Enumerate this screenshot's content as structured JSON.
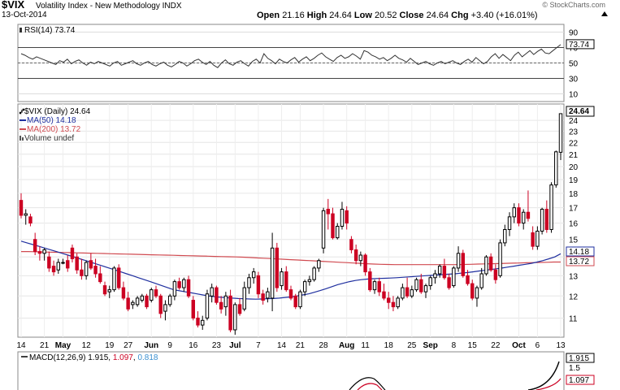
{
  "header": {
    "symbol": "$VIX",
    "name": "Volatility Index - New Methodology  INDX",
    "date": "13-Oct-2014",
    "watermark": "© StockCharts.com",
    "open_label": "Open",
    "open": "21.16",
    "high_label": "High",
    "high": "24.64",
    "low_label": "Low",
    "low": "20.52",
    "close_label": "Close",
    "close": "24.64",
    "chg_label": "Chg",
    "chg": "+3.40 (+16.01%)"
  },
  "rsi": {
    "label": "RSI(14) 73.74",
    "value_tag": "73.74",
    "ticks": [
      "90",
      "70",
      "50",
      "30",
      "10"
    ],
    "values": [
      62,
      60,
      57,
      55,
      58,
      56,
      54,
      52,
      50,
      48,
      53,
      51,
      55,
      49,
      52,
      54,
      50,
      47,
      51,
      49,
      52,
      50,
      48,
      46,
      50,
      52,
      47,
      49,
      51,
      53,
      49,
      47,
      50,
      52,
      48,
      46,
      49,
      51,
      47,
      45,
      48,
      52,
      50,
      46,
      49,
      53,
      55,
      51,
      48,
      52,
      47,
      44,
      50,
      54,
      49,
      47,
      51,
      53,
      49,
      46,
      52,
      55,
      50,
      62,
      56,
      53,
      49,
      55,
      52,
      50,
      54,
      57,
      51,
      55,
      58,
      53,
      56,
      60,
      63,
      58,
      55,
      52,
      57,
      60,
      56,
      58,
      62,
      59,
      55,
      66,
      64,
      60,
      58,
      55,
      57,
      53,
      56,
      60,
      56,
      54,
      51,
      56,
      52,
      48,
      50,
      52,
      49,
      47,
      50,
      52,
      49,
      51,
      53,
      50,
      48,
      52,
      55,
      51,
      57,
      53,
      49,
      52,
      58,
      62,
      56,
      61,
      57,
      53,
      60,
      64,
      58,
      62,
      66,
      61,
      65,
      68,
      63,
      62,
      66,
      70,
      73.74
    ]
  },
  "price": {
    "label": "$VIX (Daily) 24.64",
    "ma50_label": "MA(50) 14.18",
    "ma200_label": "MA(200) 13.72",
    "volume_label": "Volume undef",
    "tag_close": "24.64",
    "tag_ma50": "14.18",
    "tag_ma200": "13.72",
    "colors": {
      "up": "#000000",
      "down": "#cc0022",
      "ma50": "#1f2f9f",
      "ma200": "#d04a50"
    }
  },
  "macd": {
    "label_prefix": "MACD(12,26,9)",
    "macd": "1.915",
    "signal": "1.097",
    "hist": "0.818",
    "tag_macd": "1.915",
    "tag_signal": "1.097",
    "tick": "1.5",
    "colors": {
      "signal": "#cc0022",
      "hist": "#3a8fd0"
    }
  },
  "x_axis": {
    "labels": [
      {
        "t": "14",
        "b": false
      },
      {
        "t": "21",
        "b": false
      },
      {
        "t": "May",
        "b": true
      },
      {
        "t": "12",
        "b": false
      },
      {
        "t": "19",
        "b": false
      },
      {
        "t": "27",
        "b": false
      },
      {
        "t": "Jun",
        "b": true
      },
      {
        "t": "9",
        "b": false
      },
      {
        "t": "16",
        "b": false
      },
      {
        "t": "23",
        "b": false
      },
      {
        "t": "Jul",
        "b": true
      },
      {
        "t": "7",
        "b": false
      },
      {
        "t": "14",
        "b": false
      },
      {
        "t": "21",
        "b": false
      },
      {
        "t": "28",
        "b": false
      },
      {
        "t": "Aug",
        "b": true
      },
      {
        "t": "11",
        "b": false
      },
      {
        "t": "18",
        "b": false
      },
      {
        "t": "25",
        "b": false
      },
      {
        "t": "Sep",
        "b": true
      },
      {
        "t": "8",
        "b": false
      },
      {
        "t": "15",
        "b": false
      },
      {
        "t": "22",
        "b": false
      },
      {
        "t": "Oct",
        "b": true
      },
      {
        "t": "6",
        "b": false
      },
      {
        "t": "13",
        "b": false
      }
    ]
  },
  "chart_data": {
    "type": "candlestick",
    "title": "$VIX (Daily) 24.64",
    "ylabel": "",
    "y_ticks": [
      11,
      12,
      13,
      14,
      15,
      16,
      17,
      18,
      19,
      20,
      21,
      22,
      23,
      24
    ],
    "ylim": [
      10.2,
      25.6
    ],
    "scale": "log",
    "ohlc": [
      [
        17.5,
        18.0,
        16.3,
        16.5
      ],
      [
        16.5,
        16.9,
        15.9,
        16.6
      ],
      [
        16.4,
        16.6,
        15.8,
        16.0
      ],
      [
        15.0,
        15.4,
        14.1,
        14.3
      ],
      [
        14.3,
        14.6,
        13.8,
        14.2
      ],
      [
        14.2,
        14.5,
        13.8,
        14.4
      ],
      [
        14.0,
        14.3,
        13.2,
        13.4
      ],
      [
        13.5,
        13.8,
        13.0,
        13.2
      ],
      [
        13.3,
        13.9,
        13.1,
        13.7
      ],
      [
        13.7,
        13.9,
        13.6,
        13.7
      ],
      [
        13.8,
        14.1,
        13.2,
        13.4
      ],
      [
        14.5,
        14.7,
        13.7,
        13.9
      ],
      [
        14.0,
        14.2,
        13.1,
        13.3
      ],
      [
        13.3,
        13.9,
        12.8,
        13.0
      ],
      [
        13.0,
        13.8,
        12.8,
        13.7
      ],
      [
        13.8,
        14.2,
        13.3,
        13.4
      ],
      [
        13.5,
        13.9,
        12.9,
        13.1
      ],
      [
        13.1,
        13.5,
        12.6,
        12.7
      ],
      [
        12.5,
        12.7,
        12.0,
        12.1
      ],
      [
        12.2,
        12.5,
        11.9,
        12.3
      ],
      [
        12.3,
        13.5,
        12.2,
        13.4
      ],
      [
        13.4,
        13.6,
        12.3,
        12.4
      ],
      [
        12.4,
        12.7,
        11.8,
        11.9
      ],
      [
        11.9,
        12.2,
        11.3,
        11.4
      ],
      [
        11.6,
        11.8,
        11.4,
        11.7
      ],
      [
        11.6,
        12.0,
        11.5,
        11.9
      ],
      [
        11.8,
        12.1,
        11.7,
        12.0
      ],
      [
        12.0,
        12.1,
        11.4,
        11.5
      ],
      [
        11.8,
        12.4,
        11.7,
        12.3
      ],
      [
        12.3,
        12.5,
        11.9,
        12.0
      ],
      [
        12.0,
        12.1,
        11.0,
        11.2
      ],
      [
        11.3,
        11.8,
        10.9,
        11.6
      ],
      [
        11.6,
        12.1,
        11.5,
        12.0
      ],
      [
        12.0,
        12.8,
        11.8,
        12.7
      ],
      [
        12.7,
        12.9,
        12.3,
        12.4
      ],
      [
        12.4,
        12.9,
        12.2,
        12.8
      ],
      [
        12.8,
        13.0,
        11.9,
        12.0
      ],
      [
        11.8,
        12.0,
        10.9,
        11.0
      ],
      [
        11.0,
        11.3,
        10.6,
        10.7
      ],
      [
        10.7,
        11.1,
        10.5,
        10.9
      ],
      [
        11.0,
        12.3,
        10.9,
        12.1
      ],
      [
        12.0,
        12.6,
        11.7,
        12.4
      ],
      [
        12.4,
        12.5,
        11.6,
        11.7
      ],
      [
        11.7,
        12.0,
        11.2,
        11.4
      ],
      [
        11.5,
        12.2,
        11.1,
        12.0
      ],
      [
        12.0,
        12.3,
        10.4,
        10.5
      ],
      [
        10.5,
        11.7,
        10.3,
        11.6
      ],
      [
        11.6,
        11.9,
        11.1,
        11.2
      ],
      [
        11.4,
        12.7,
        11.3,
        12.4
      ],
      [
        12.4,
        13.1,
        12.1,
        12.9
      ],
      [
        12.9,
        13.4,
        12.6,
        13.2
      ],
      [
        13.0,
        13.2,
        11.9,
        12.1
      ],
      [
        12.1,
        12.3,
        11.6,
        11.8
      ],
      [
        11.9,
        12.4,
        11.7,
        12.2
      ],
      [
        11.9,
        15.4,
        11.3,
        14.5
      ],
      [
        14.5,
        14.8,
        12.2,
        12.4
      ],
      [
        12.5,
        13.4,
        12.3,
        13.2
      ],
      [
        13.2,
        13.5,
        12.2,
        12.3
      ],
      [
        12.3,
        12.5,
        11.8,
        11.9
      ],
      [
        12.0,
        12.1,
        11.4,
        11.5
      ],
      [
        11.5,
        12.3,
        11.4,
        12.2
      ],
      [
        12.2,
        12.8,
        12.0,
        12.7
      ],
      [
        12.7,
        13.0,
        12.5,
        12.8
      ],
      [
        12.8,
        13.5,
        12.7,
        13.4
      ],
      [
        13.4,
        13.9,
        13.2,
        13.8
      ],
      [
        14.5,
        17.0,
        14.2,
        16.8
      ],
      [
        16.9,
        17.6,
        15.6,
        16.6
      ],
      [
        16.6,
        17.0,
        15.0,
        15.1
      ],
      [
        15.1,
        16.0,
        15.0,
        15.8
      ],
      [
        15.8,
        17.4,
        15.6,
        16.9
      ],
      [
        16.8,
        17.1,
        15.6,
        16.0
      ],
      [
        15.0,
        15.2,
        14.2,
        14.4
      ],
      [
        14.4,
        14.7,
        13.6,
        13.8
      ],
      [
        13.8,
        14.3,
        13.5,
        14.1
      ],
      [
        14.1,
        14.2,
        13.0,
        13.2
      ],
      [
        13.2,
        13.4,
        12.2,
        12.3
      ],
      [
        12.3,
        12.8,
        12.1,
        12.7
      ],
      [
        12.7,
        12.9,
        12.0,
        12.2
      ],
      [
        12.2,
        12.6,
        11.8,
        11.9
      ],
      [
        11.9,
        12.2,
        11.4,
        11.7
      ],
      [
        11.7,
        12.0,
        11.3,
        11.5
      ],
      [
        11.5,
        12.0,
        11.4,
        11.9
      ],
      [
        11.9,
        12.6,
        11.8,
        12.4
      ],
      [
        12.4,
        12.9,
        11.9,
        12.0
      ],
      [
        12.0,
        12.5,
        11.9,
        12.3
      ],
      [
        12.3,
        12.9,
        12.2,
        12.8
      ],
      [
        12.8,
        13.1,
        12.1,
        12.2
      ],
      [
        12.2,
        12.6,
        11.9,
        12.5
      ],
      [
        12.5,
        13.0,
        12.3,
        12.9
      ],
      [
        12.9,
        13.3,
        12.6,
        13.1
      ],
      [
        13.1,
        13.6,
        12.9,
        13.5
      ],
      [
        13.5,
        13.9,
        12.8,
        12.9
      ],
      [
        12.9,
        13.1,
        12.3,
        12.4
      ],
      [
        12.5,
        13.5,
        12.4,
        13.4
      ],
      [
        13.4,
        14.6,
        13.2,
        14.2
      ],
      [
        14.2,
        14.4,
        12.9,
        13.0
      ],
      [
        13.0,
        13.3,
        12.5,
        12.6
      ],
      [
        12.6,
        12.8,
        11.8,
        11.9
      ],
      [
        11.9,
        12.5,
        11.5,
        12.4
      ],
      [
        12.4,
        13.4,
        12.3,
        13.1
      ],
      [
        13.1,
        14.1,
        13.0,
        14.0
      ],
      [
        14.0,
        14.2,
        13.2,
        13.3
      ],
      [
        13.3,
        13.6,
        12.6,
        12.8
      ],
      [
        13.0,
        15.0,
        12.9,
        14.8
      ],
      [
        14.8,
        15.9,
        14.6,
        15.6
      ],
      [
        15.6,
        16.7,
        15.2,
        16.4
      ],
      [
        16.4,
        17.3,
        16.0,
        17.0
      ],
      [
        17.0,
        17.3,
        15.8,
        16.0
      ],
      [
        16.0,
        16.9,
        15.6,
        16.7
      ],
      [
        16.7,
        18.2,
        16.1,
        16.3
      ],
      [
        15.4,
        15.8,
        14.4,
        14.6
      ],
      [
        14.6,
        15.8,
        14.4,
        15.5
      ],
      [
        15.5,
        17.0,
        15.3,
        16.9
      ],
      [
        16.9,
        17.5,
        15.4,
        15.6
      ],
      [
        15.6,
        18.8,
        15.4,
        18.6
      ],
      [
        18.6,
        21.3,
        18.4,
        21.2
      ],
      [
        21.16,
        24.64,
        20.52,
        24.64
      ]
    ],
    "ma50": [
      14.9,
      14.8,
      14.7,
      14.6,
      14.5,
      14.4,
      14.3,
      14.2,
      14.1,
      14.0,
      13.9,
      13.8,
      13.7,
      13.6,
      13.5,
      13.4,
      13.3,
      13.2,
      13.1,
      13.0,
      12.9,
      12.8,
      12.7,
      12.6,
      12.5,
      12.4,
      12.3,
      12.25,
      12.2,
      12.15,
      12.1,
      12.05,
      12.0,
      11.97,
      11.94,
      11.92,
      11.9,
      11.88,
      11.87,
      11.86,
      11.85,
      11.86,
      11.87,
      11.88,
      11.9,
      11.93,
      11.96,
      12.0,
      12.05,
      12.1,
      12.18,
      12.26,
      12.35,
      12.45,
      12.55,
      12.63,
      12.7,
      12.76,
      12.8,
      12.83,
      12.85,
      12.86,
      12.87,
      12.88,
      12.9,
      12.92,
      12.94,
      12.96,
      12.98,
      13.0,
      13.02,
      13.04,
      13.06,
      13.08,
      13.1,
      13.13,
      13.16,
      13.2,
      13.24,
      13.28,
      13.32,
      13.36,
      13.4,
      13.45,
      13.5,
      13.55,
      13.6,
      13.65,
      13.72,
      13.8,
      13.9,
      14.0,
      14.18
    ],
    "ma200": [
      14.3,
      14.3,
      14.29,
      14.28,
      14.27,
      14.26,
      14.25,
      14.24,
      14.23,
      14.22,
      14.21,
      14.2,
      14.19,
      14.18,
      14.17,
      14.16,
      14.15,
      14.14,
      14.13,
      14.12,
      14.11,
      14.1,
      14.09,
      14.08,
      14.07,
      14.06,
      14.05,
      14.04,
      14.03,
      14.02,
      14.01,
      14.0,
      13.99,
      13.97,
      13.95,
      13.93,
      13.91,
      13.89,
      13.87,
      13.85,
      13.83,
      13.81,
      13.79,
      13.77,
      13.75,
      13.73,
      13.71,
      13.69,
      13.67,
      13.65,
      13.63,
      13.61,
      13.6,
      13.59,
      13.58,
      13.58,
      13.58,
      13.58,
      13.58,
      13.58,
      13.58,
      13.58,
      13.58,
      13.58,
      13.59,
      13.6,
      13.61,
      13.62,
      13.63,
      13.64,
      13.65,
      13.66,
      13.67,
      13.68,
      13.69,
      13.7,
      13.71,
      13.72,
      13.72
    ]
  }
}
